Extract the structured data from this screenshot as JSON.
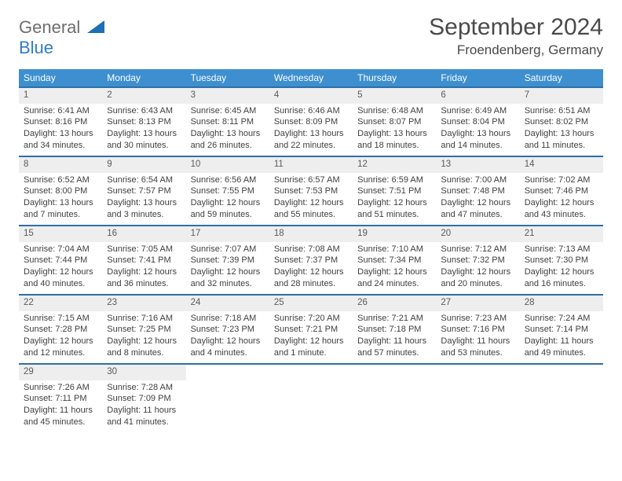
{
  "logo": {
    "word1": "General",
    "word2": "Blue"
  },
  "title": "September 2024",
  "location": "Froendenberg, Germany",
  "colors": {
    "header_bg": "#3e8fd0",
    "header_text": "#ffffff",
    "row_border": "#2f6fa6",
    "daynum_bg": "#eeeeee",
    "text": "#3f3f3f"
  },
  "typography": {
    "title_fontsize": 30,
    "location_fontsize": 17,
    "weekday_fontsize": 12,
    "cell_fontsize": 11
  },
  "weekdays": [
    "Sunday",
    "Monday",
    "Tuesday",
    "Wednesday",
    "Thursday",
    "Friday",
    "Saturday"
  ],
  "weeks": [
    [
      {
        "n": "1",
        "sunrise": "6:41 AM",
        "sunset": "8:16 PM",
        "daylight": "13 hours and 34 minutes."
      },
      {
        "n": "2",
        "sunrise": "6:43 AM",
        "sunset": "8:13 PM",
        "daylight": "13 hours and 30 minutes."
      },
      {
        "n": "3",
        "sunrise": "6:45 AM",
        "sunset": "8:11 PM",
        "daylight": "13 hours and 26 minutes."
      },
      {
        "n": "4",
        "sunrise": "6:46 AM",
        "sunset": "8:09 PM",
        "daylight": "13 hours and 22 minutes."
      },
      {
        "n": "5",
        "sunrise": "6:48 AM",
        "sunset": "8:07 PM",
        "daylight": "13 hours and 18 minutes."
      },
      {
        "n": "6",
        "sunrise": "6:49 AM",
        "sunset": "8:04 PM",
        "daylight": "13 hours and 14 minutes."
      },
      {
        "n": "7",
        "sunrise": "6:51 AM",
        "sunset": "8:02 PM",
        "daylight": "13 hours and 11 minutes."
      }
    ],
    [
      {
        "n": "8",
        "sunrise": "6:52 AM",
        "sunset": "8:00 PM",
        "daylight": "13 hours and 7 minutes."
      },
      {
        "n": "9",
        "sunrise": "6:54 AM",
        "sunset": "7:57 PM",
        "daylight": "13 hours and 3 minutes."
      },
      {
        "n": "10",
        "sunrise": "6:56 AM",
        "sunset": "7:55 PM",
        "daylight": "12 hours and 59 minutes."
      },
      {
        "n": "11",
        "sunrise": "6:57 AM",
        "sunset": "7:53 PM",
        "daylight": "12 hours and 55 minutes."
      },
      {
        "n": "12",
        "sunrise": "6:59 AM",
        "sunset": "7:51 PM",
        "daylight": "12 hours and 51 minutes."
      },
      {
        "n": "13",
        "sunrise": "7:00 AM",
        "sunset": "7:48 PM",
        "daylight": "12 hours and 47 minutes."
      },
      {
        "n": "14",
        "sunrise": "7:02 AM",
        "sunset": "7:46 PM",
        "daylight": "12 hours and 43 minutes."
      }
    ],
    [
      {
        "n": "15",
        "sunrise": "7:04 AM",
        "sunset": "7:44 PM",
        "daylight": "12 hours and 40 minutes."
      },
      {
        "n": "16",
        "sunrise": "7:05 AM",
        "sunset": "7:41 PM",
        "daylight": "12 hours and 36 minutes."
      },
      {
        "n": "17",
        "sunrise": "7:07 AM",
        "sunset": "7:39 PM",
        "daylight": "12 hours and 32 minutes."
      },
      {
        "n": "18",
        "sunrise": "7:08 AM",
        "sunset": "7:37 PM",
        "daylight": "12 hours and 28 minutes."
      },
      {
        "n": "19",
        "sunrise": "7:10 AM",
        "sunset": "7:34 PM",
        "daylight": "12 hours and 24 minutes."
      },
      {
        "n": "20",
        "sunrise": "7:12 AM",
        "sunset": "7:32 PM",
        "daylight": "12 hours and 20 minutes."
      },
      {
        "n": "21",
        "sunrise": "7:13 AM",
        "sunset": "7:30 PM",
        "daylight": "12 hours and 16 minutes."
      }
    ],
    [
      {
        "n": "22",
        "sunrise": "7:15 AM",
        "sunset": "7:28 PM",
        "daylight": "12 hours and 12 minutes."
      },
      {
        "n": "23",
        "sunrise": "7:16 AM",
        "sunset": "7:25 PM",
        "daylight": "12 hours and 8 minutes."
      },
      {
        "n": "24",
        "sunrise": "7:18 AM",
        "sunset": "7:23 PM",
        "daylight": "12 hours and 4 minutes."
      },
      {
        "n": "25",
        "sunrise": "7:20 AM",
        "sunset": "7:21 PM",
        "daylight": "12 hours and 1 minute."
      },
      {
        "n": "26",
        "sunrise": "7:21 AM",
        "sunset": "7:18 PM",
        "daylight": "11 hours and 57 minutes."
      },
      {
        "n": "27",
        "sunrise": "7:23 AM",
        "sunset": "7:16 PM",
        "daylight": "11 hours and 53 minutes."
      },
      {
        "n": "28",
        "sunrise": "7:24 AM",
        "sunset": "7:14 PM",
        "daylight": "11 hours and 49 minutes."
      }
    ],
    [
      {
        "n": "29",
        "sunrise": "7:26 AM",
        "sunset": "7:11 PM",
        "daylight": "11 hours and 45 minutes."
      },
      {
        "n": "30",
        "sunrise": "7:28 AM",
        "sunset": "7:09 PM",
        "daylight": "11 hours and 41 minutes."
      },
      null,
      null,
      null,
      null,
      null
    ]
  ]
}
